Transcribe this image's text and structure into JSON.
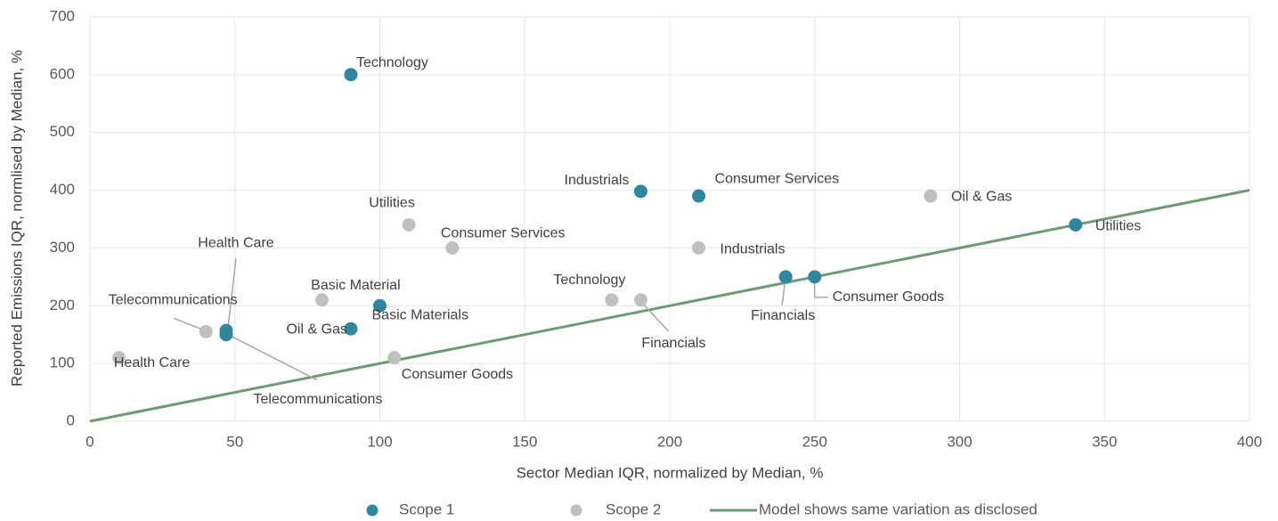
{
  "chart_data": {
    "type": "scatter",
    "x_label": "Sector Median IQR, normalized by Median, %",
    "y_label": "Reported Emissions IQR, normlised by Median, %",
    "xlim": [
      0,
      400
    ],
    "ylim": [
      0,
      700
    ],
    "xticks": [
      0,
      50,
      100,
      150,
      200,
      250,
      300,
      350,
      400
    ],
    "yticks": [
      0,
      100,
      200,
      300,
      400,
      500,
      600,
      700
    ],
    "grid": true,
    "legend": "bottom",
    "series": [
      {
        "name": "Scope 1",
        "color": "#2f869f",
        "x": [
          90,
          190,
          210,
          340,
          240,
          250,
          100,
          90,
          47,
          47
        ],
        "values": [
          600,
          398,
          390,
          340,
          250,
          250,
          200,
          160,
          157,
          150
        ],
        "labels": [
          "Technology",
          "Industrials",
          "Consumer Services",
          "Utilities",
          "Financials",
          "Consumer Goods",
          "Basic Materials",
          "Oil & Gas",
          "Health Care",
          "Telecommunications"
        ]
      },
      {
        "name": "Scope 2",
        "color": "#c0c0c0",
        "x": [
          110,
          125,
          290,
          210,
          80,
          180,
          190,
          40,
          10,
          105
        ],
        "values": [
          340,
          300,
          390,
          300,
          210,
          210,
          210,
          155,
          110,
          110
        ],
        "labels": [
          "Utilities",
          "Consumer Services",
          "Oil & Gas",
          "Industrials",
          "Basic Material",
          "Technology",
          "Financials",
          "Telecommunications",
          "Health Care",
          "Consumer Goods"
        ]
      }
    ],
    "line": {
      "name": "Model shows same variation as disclosed",
      "color": "#6e9a72",
      "x": [
        0,
        400
      ],
      "values": [
        0,
        400
      ]
    }
  }
}
